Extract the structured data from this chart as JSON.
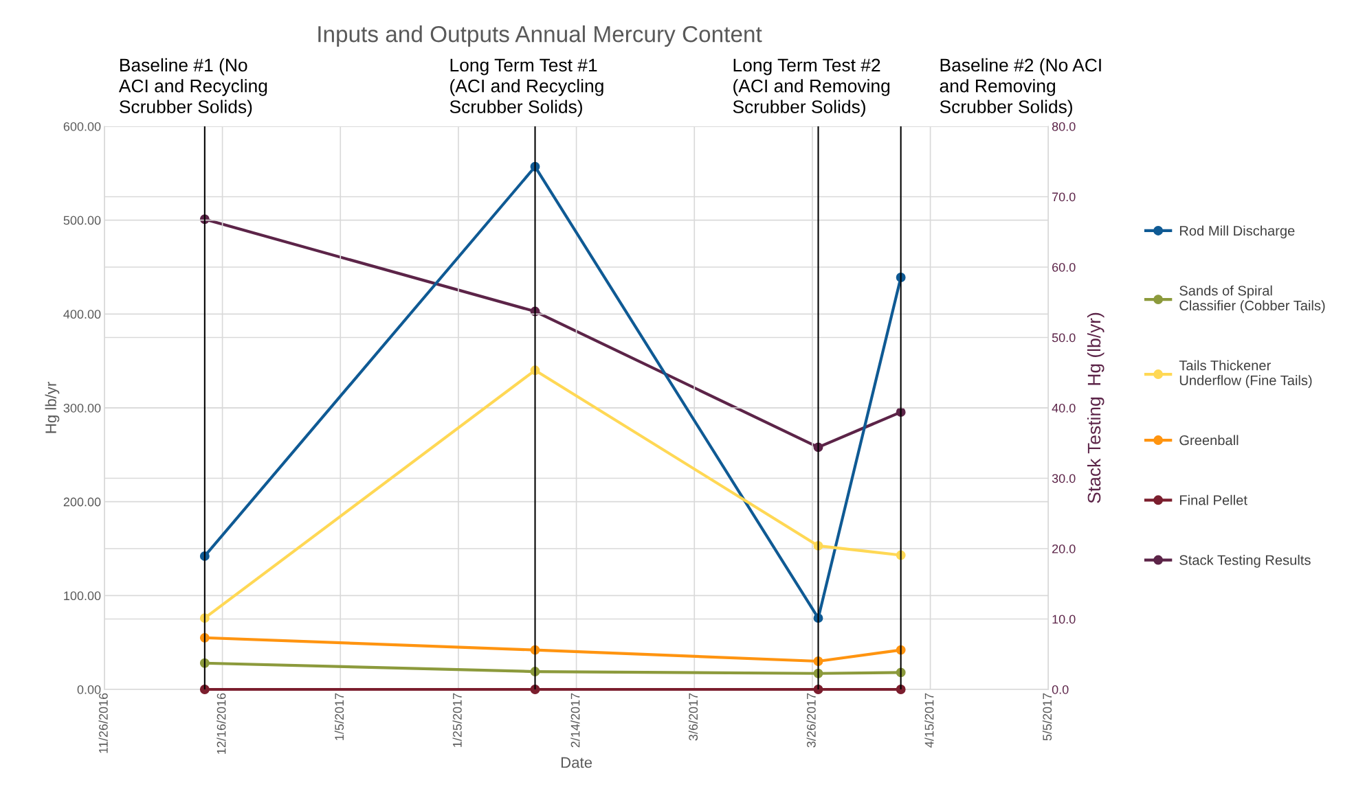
{
  "chart_data": {
    "type": "line",
    "title": "Inputs and Outputs Annual Mercury Content",
    "xlabel": "Date",
    "ylabel": "Hg lb/yr",
    "y2label": "Stack Testing  Hg (lb/yr)",
    "x": [
      "2016-12-13",
      "2017-02-07",
      "2017-03-27",
      "2017-04-10"
    ],
    "series": [
      {
        "name": "Rod Mill Discharge",
        "color": "#0f5a94",
        "values": [
          142,
          557,
          76,
          439
        ]
      },
      {
        "name": "Sands of Spiral\nClassifier (Cobber Tails)",
        "color": "#8c9a3c",
        "values": [
          28,
          19,
          17,
          18
        ]
      },
      {
        "name": "Tails Thickener\nUnderflow (Fine Tails)",
        "color": "#ffd855",
        "values": [
          76,
          340,
          153,
          143
        ]
      },
      {
        "name": "Greenball",
        "color": "#ff9410",
        "values": [
          55,
          42,
          30,
          42
        ]
      },
      {
        "name": "Final Pellet",
        "color": "#7b1e2e",
        "values": [
          0,
          0,
          0,
          0
        ]
      },
      {
        "name": "Stack Testing Results",
        "color": "#5c2448",
        "axis": "y2",
        "values": [
          66.8,
          53.7,
          34.4,
          39.4
        ]
      }
    ],
    "xlim": [
      "2016-11-26",
      "2017-05-05"
    ],
    "xticks": [
      {
        "value": "2016-11-26",
        "label": "11/26/2016"
      },
      {
        "value": "2016-12-16",
        "label": "12/16/2016"
      },
      {
        "value": "2017-01-05",
        "label": "1/5/2017"
      },
      {
        "value": "2017-01-25",
        "label": "1/25/2017"
      },
      {
        "value": "2017-02-14",
        "label": "2/14/2017"
      },
      {
        "value": "2017-03-06",
        "label": "3/6/2017"
      },
      {
        "value": "2017-03-26",
        "label": "3/26/2017"
      },
      {
        "value": "2017-04-15",
        "label": "4/15/2017"
      },
      {
        "value": "2017-05-05",
        "label": "5/5/2017"
      }
    ],
    "ylim": [
      0,
      600
    ],
    "yticks": [
      {
        "value": 0,
        "label": "0.00"
      },
      {
        "value": 100,
        "label": "100.00"
      },
      {
        "value": 200,
        "label": "200.00"
      },
      {
        "value": 300,
        "label": "300.00"
      },
      {
        "value": 400,
        "label": "400.00"
      },
      {
        "value": 500,
        "label": "500.00"
      },
      {
        "value": 600,
        "label": "600.00"
      }
    ],
    "y2lim": [
      0,
      80
    ],
    "y2ticks": [
      {
        "value": 0,
        "label": "0.0"
      },
      {
        "value": 10,
        "label": "10.0"
      },
      {
        "value": 20,
        "label": "20.0"
      },
      {
        "value": 30,
        "label": "30.0"
      },
      {
        "value": 40,
        "label": "40.0"
      },
      {
        "value": 50,
        "label": "50.0"
      },
      {
        "value": 60,
        "label": "60.0"
      },
      {
        "value": 70,
        "label": "70.0"
      },
      {
        "value": 80,
        "label": "80.0"
      }
    ],
    "ref_lines": [
      {
        "axis": "x",
        "value": "2016-12-13",
        "label": "Baseline #1 (No\nACI and Recycling\nScrubber Solids)",
        "color": "#000000"
      },
      {
        "axis": "x",
        "value": "2017-02-07",
        "label": "Long Term Test #1\n(ACI and Recycling\nScrubber Solids)",
        "color": "#000000"
      },
      {
        "axis": "x",
        "value": "2017-03-27",
        "label": "Long Term Test #2\n(ACI and Removing\nScrubber Solids)",
        "color": "#000000"
      },
      {
        "axis": "x",
        "value": "2017-04-10",
        "label": "Baseline #2 (No ACI\nand Removing\nScrubber Solids)",
        "color": "#000000"
      }
    ],
    "grid": true,
    "legend": "right",
    "marker": "circle",
    "line_style": "solid"
  }
}
